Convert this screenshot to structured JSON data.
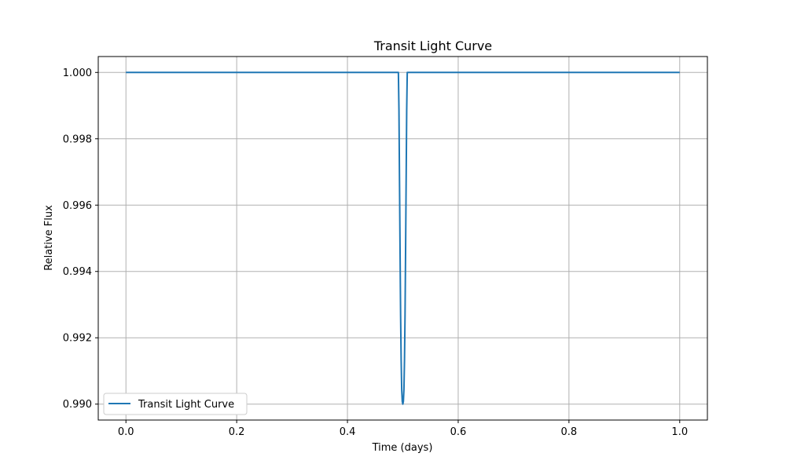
{
  "chart_data": {
    "type": "line",
    "title": "Transit Light Curve",
    "xlabel": "Time (days)",
    "ylabel": "Relative Flux",
    "xlim": [
      -0.05,
      1.05
    ],
    "ylim": [
      0.98952,
      1.00048
    ],
    "x_ticks": [
      0.0,
      0.2,
      0.4,
      0.6,
      0.8,
      1.0
    ],
    "x_tick_labels": [
      "0.0",
      "0.2",
      "0.4",
      "0.6",
      "0.8",
      "1.0"
    ],
    "y_ticks": [
      0.99,
      0.992,
      0.994,
      0.996,
      0.998,
      1.0
    ],
    "y_tick_labels": [
      "0.990",
      "0.992",
      "0.994",
      "0.996",
      "0.998",
      "1.000"
    ],
    "grid": true,
    "legend_position": "lower-left",
    "series": [
      {
        "name": "Transit Light Curve",
        "color": "#1f77b4",
        "x": [
          0.0,
          0.492,
          0.493,
          0.494,
          0.495,
          0.496,
          0.497,
          0.498,
          0.499,
          0.5,
          0.501,
          0.502,
          0.503,
          0.504,
          0.505,
          0.506,
          0.507,
          0.508,
          1.0
        ],
        "y": [
          1.0,
          1.0,
          0.99888,
          0.99676,
          0.99464,
          0.99268,
          0.99132,
          0.99044,
          0.99008,
          0.99,
          0.99008,
          0.99044,
          0.99132,
          0.99268,
          0.99464,
          0.99676,
          0.99888,
          1.0,
          1.0
        ]
      }
    ]
  }
}
